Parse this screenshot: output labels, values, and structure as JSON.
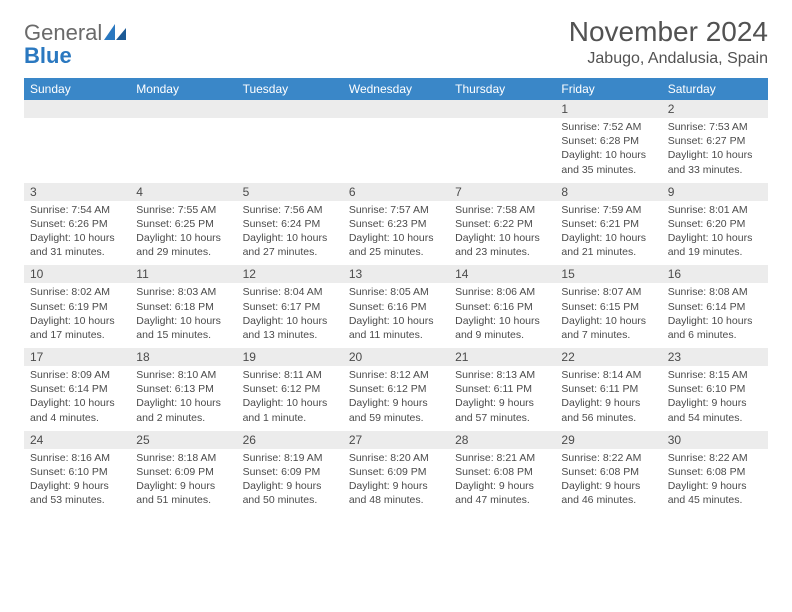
{
  "logo": {
    "text1": "General",
    "text2": "Blue"
  },
  "title": "November 2024",
  "location": "Jabugo, Andalusia, Spain",
  "colors": {
    "header_bg": "#3a87c8",
    "header_text": "#ffffff",
    "daynum_bg": "#ececec",
    "border": "#2a78c0",
    "text": "#4b4b4b",
    "title_text": "#525252",
    "logo_gray": "#6a6a6a",
    "logo_blue": "#2a78c0"
  },
  "fonts": {
    "title_size_pt": 21,
    "location_size_pt": 12,
    "dayhead_size_pt": 9,
    "daynum_size_pt": 9,
    "detail_size_pt": 8
  },
  "day_names": [
    "Sunday",
    "Monday",
    "Tuesday",
    "Wednesday",
    "Thursday",
    "Friday",
    "Saturday"
  ],
  "weeks": [
    {
      "nums": [
        "",
        "",
        "",
        "",
        "",
        "1",
        "2"
      ],
      "details": [
        "",
        "",
        "",
        "",
        "",
        "Sunrise: 7:52 AM\nSunset: 6:28 PM\nDaylight: 10 hours and 35 minutes.",
        "Sunrise: 7:53 AM\nSunset: 6:27 PM\nDaylight: 10 hours and 33 minutes."
      ]
    },
    {
      "nums": [
        "3",
        "4",
        "5",
        "6",
        "7",
        "8",
        "9"
      ],
      "details": [
        "Sunrise: 7:54 AM\nSunset: 6:26 PM\nDaylight: 10 hours and 31 minutes.",
        "Sunrise: 7:55 AM\nSunset: 6:25 PM\nDaylight: 10 hours and 29 minutes.",
        "Sunrise: 7:56 AM\nSunset: 6:24 PM\nDaylight: 10 hours and 27 minutes.",
        "Sunrise: 7:57 AM\nSunset: 6:23 PM\nDaylight: 10 hours and 25 minutes.",
        "Sunrise: 7:58 AM\nSunset: 6:22 PM\nDaylight: 10 hours and 23 minutes.",
        "Sunrise: 7:59 AM\nSunset: 6:21 PM\nDaylight: 10 hours and 21 minutes.",
        "Sunrise: 8:01 AM\nSunset: 6:20 PM\nDaylight: 10 hours and 19 minutes."
      ]
    },
    {
      "nums": [
        "10",
        "11",
        "12",
        "13",
        "14",
        "15",
        "16"
      ],
      "details": [
        "Sunrise: 8:02 AM\nSunset: 6:19 PM\nDaylight: 10 hours and 17 minutes.",
        "Sunrise: 8:03 AM\nSunset: 6:18 PM\nDaylight: 10 hours and 15 minutes.",
        "Sunrise: 8:04 AM\nSunset: 6:17 PM\nDaylight: 10 hours and 13 minutes.",
        "Sunrise: 8:05 AM\nSunset: 6:16 PM\nDaylight: 10 hours and 11 minutes.",
        "Sunrise: 8:06 AM\nSunset: 6:16 PM\nDaylight: 10 hours and 9 minutes.",
        "Sunrise: 8:07 AM\nSunset: 6:15 PM\nDaylight: 10 hours and 7 minutes.",
        "Sunrise: 8:08 AM\nSunset: 6:14 PM\nDaylight: 10 hours and 6 minutes."
      ]
    },
    {
      "nums": [
        "17",
        "18",
        "19",
        "20",
        "21",
        "22",
        "23"
      ],
      "details": [
        "Sunrise: 8:09 AM\nSunset: 6:14 PM\nDaylight: 10 hours and 4 minutes.",
        "Sunrise: 8:10 AM\nSunset: 6:13 PM\nDaylight: 10 hours and 2 minutes.",
        "Sunrise: 8:11 AM\nSunset: 6:12 PM\nDaylight: 10 hours and 1 minute.",
        "Sunrise: 8:12 AM\nSunset: 6:12 PM\nDaylight: 9 hours and 59 minutes.",
        "Sunrise: 8:13 AM\nSunset: 6:11 PM\nDaylight: 9 hours and 57 minutes.",
        "Sunrise: 8:14 AM\nSunset: 6:11 PM\nDaylight: 9 hours and 56 minutes.",
        "Sunrise: 8:15 AM\nSunset: 6:10 PM\nDaylight: 9 hours and 54 minutes."
      ]
    },
    {
      "nums": [
        "24",
        "25",
        "26",
        "27",
        "28",
        "29",
        "30"
      ],
      "details": [
        "Sunrise: 8:16 AM\nSunset: 6:10 PM\nDaylight: 9 hours and 53 minutes.",
        "Sunrise: 8:18 AM\nSunset: 6:09 PM\nDaylight: 9 hours and 51 minutes.",
        "Sunrise: 8:19 AM\nSunset: 6:09 PM\nDaylight: 9 hours and 50 minutes.",
        "Sunrise: 8:20 AM\nSunset: 6:09 PM\nDaylight: 9 hours and 48 minutes.",
        "Sunrise: 8:21 AM\nSunset: 6:08 PM\nDaylight: 9 hours and 47 minutes.",
        "Sunrise: 8:22 AM\nSunset: 6:08 PM\nDaylight: 9 hours and 46 minutes.",
        "Sunrise: 8:22 AM\nSunset: 6:08 PM\nDaylight: 9 hours and 45 minutes."
      ]
    }
  ]
}
